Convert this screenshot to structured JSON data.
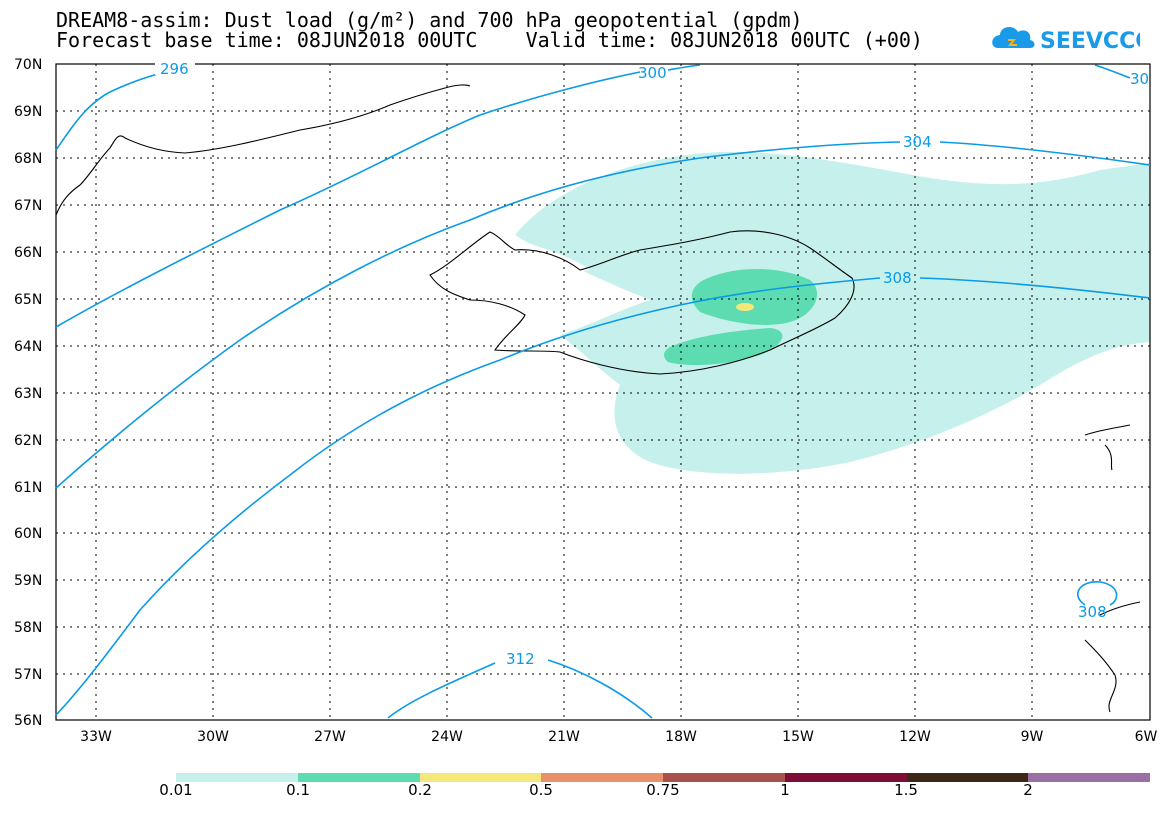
{
  "header": {
    "title_line1": "DREAM8-assim: Dust load (g/m²) and 700 hPa geopotential (gpdm)",
    "title_line2": "Forecast base time: 08JUN2018 00UTC    Valid time: 08JUN2018 00UTC (+00)",
    "logo_text": "SEEVCCC"
  },
  "map": {
    "lat_labels": [
      "70N",
      "69N",
      "68N",
      "67N",
      "66N",
      "65N",
      "64N",
      "63N",
      "62N",
      "61N",
      "60N",
      "59N",
      "58N",
      "57N",
      "56N"
    ],
    "lon_labels": [
      "33W",
      "30W",
      "27W",
      "24W",
      "21W",
      "18W",
      "15W",
      "12W",
      "9W",
      "6W"
    ],
    "contour_labels": [
      "296",
      "300",
      "30",
      "304",
      "308",
      "308",
      "312"
    ],
    "contour_color": "#0a9ae6"
  },
  "legend": {
    "labels": [
      "0.01",
      "0.1",
      "0.2",
      "0.5",
      "0.75",
      "1",
      "1.5",
      "2"
    ],
    "colors": [
      "#c6f0ec",
      "#5cdcb0",
      "#f5e87a",
      "#e8906a",
      "#a8524c",
      "#7e0c34",
      "#3c2816",
      "#9a70a4"
    ]
  }
}
